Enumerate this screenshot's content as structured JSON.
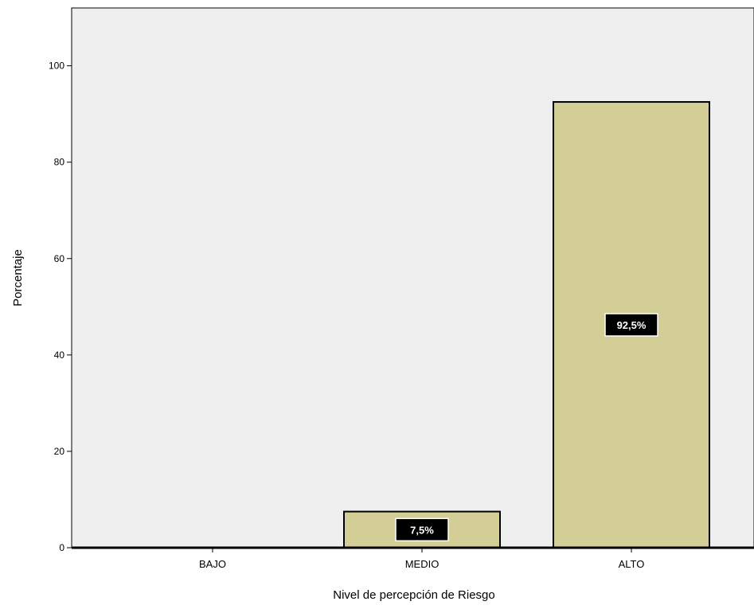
{
  "chart_data": {
    "type": "bar",
    "categories": [
      "BAJO",
      "MEDIO",
      "ALTO"
    ],
    "values": [
      0.0,
      7.5,
      92.5
    ],
    "data_labels": [
      "",
      "7,5%",
      "92,5%"
    ],
    "xlabel": "Nivel de percepción de Riesgo",
    "ylabel": "Porcentaje",
    "yticks": [
      0,
      20,
      40,
      60,
      80,
      100
    ],
    "ylim": [
      0,
      112
    ],
    "grid": false,
    "legend": "none",
    "colors": {
      "plot_background": "#efefef",
      "bar_fill": "#d3cd96",
      "bar_stroke": "#000000",
      "label_box": "#000000",
      "label_text": "#ffffff"
    }
  }
}
